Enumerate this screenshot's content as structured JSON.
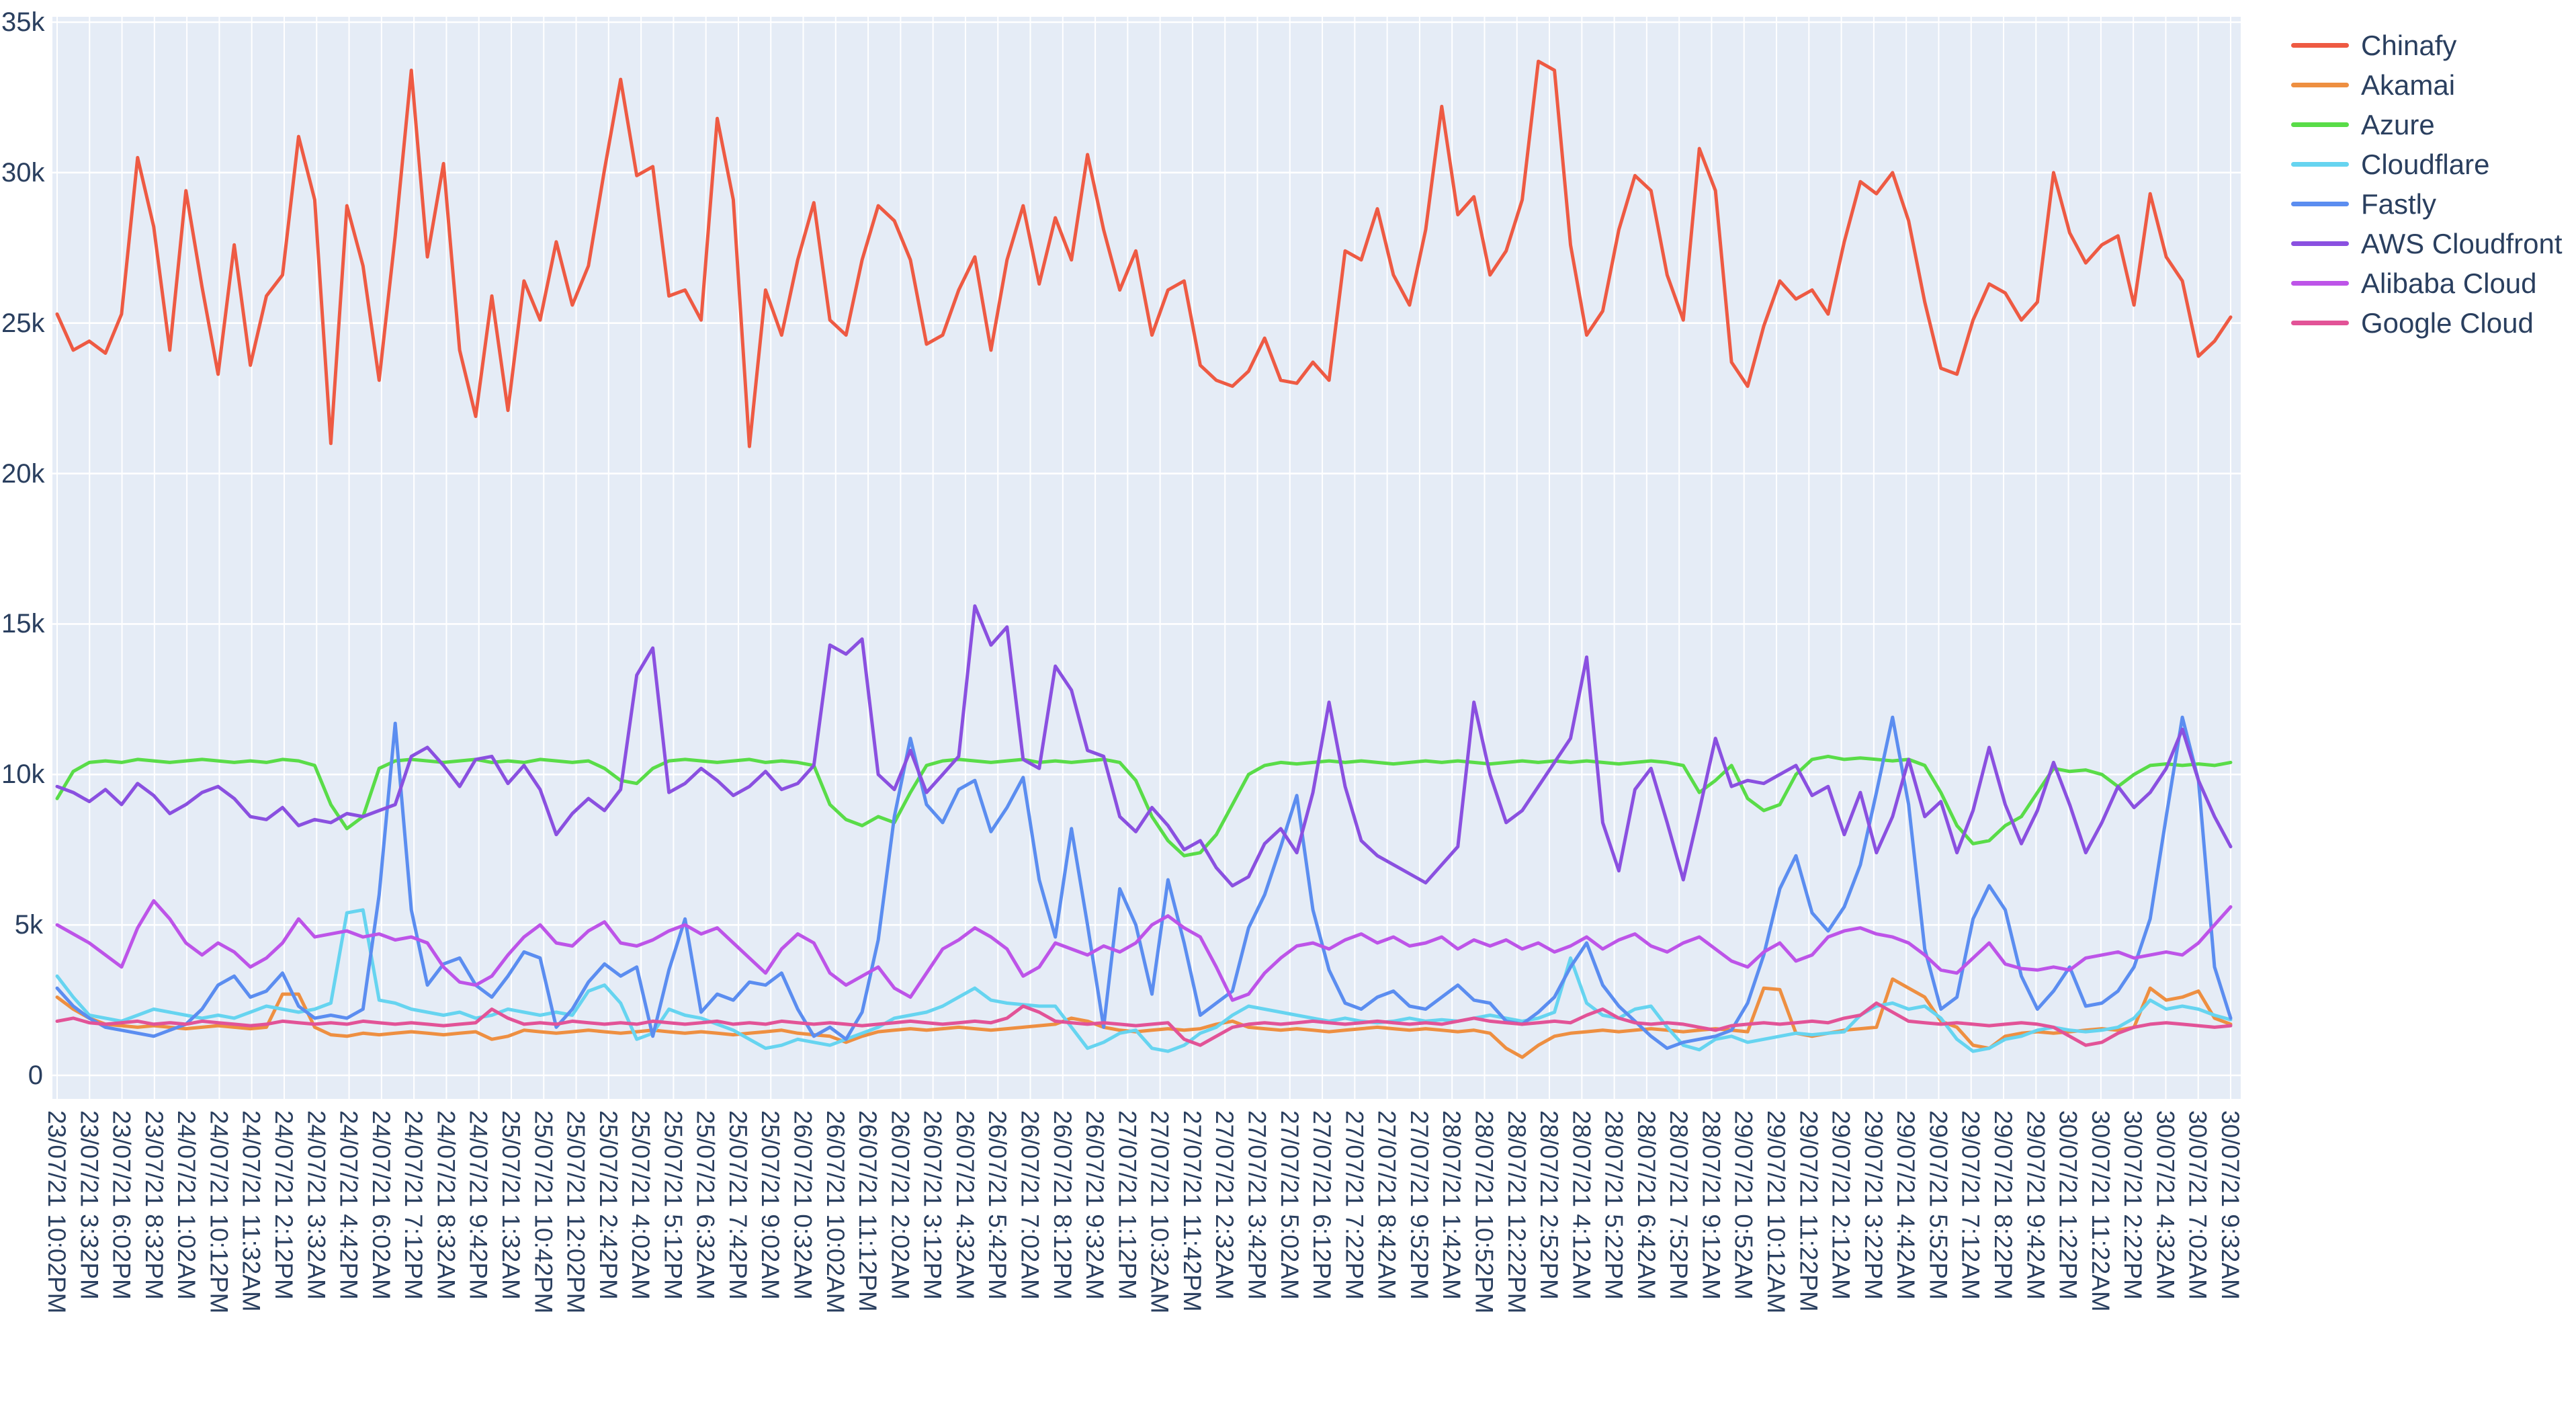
{
  "chart_data": {
    "type": "line",
    "title": "",
    "xlabel": "",
    "ylabel": "",
    "plot_background": "#e5ecf6",
    "grid_color": "#ffffff",
    "tick_color": "#2a3f5f",
    "legend_position": "right",
    "grid": true,
    "ylim": [
      0,
      35000
    ],
    "values_unit": "k",
    "ytick_labels": [
      "0",
      "5k",
      "10k",
      "15k",
      "20k",
      "25k",
      "30k",
      "35k"
    ],
    "xtick_labels": [
      "23/07/21 10:02PM",
      "23/07/21 3:32PM",
      "23/07/21 6:02PM",
      "23/07/21 8:32PM",
      "24/07/21 1:02AM",
      "24/07/21 10:12PM",
      "24/07/21 11:32AM",
      "24/07/21 2:12PM",
      "24/07/21 3:32AM",
      "24/07/21 4:42PM",
      "24/07/21 6:02AM",
      "24/07/21 7:12PM",
      "24/07/21 8:32AM",
      "24/07/21 9:42PM",
      "25/07/21 1:32AM",
      "25/07/21 10:42PM",
      "25/07/21 12:02PM",
      "25/07/21 2:42PM",
      "25/07/21 4:02AM",
      "25/07/21 5:12PM",
      "25/07/21 6:32AM",
      "25/07/21 7:42PM",
      "25/07/21 9:02AM",
      "26/07/21 0:32AM",
      "26/07/21 10:02AM",
      "26/07/21 11:12PM",
      "26/07/21 2:02AM",
      "26/07/21 3:12PM",
      "26/07/21 4:32AM",
      "26/07/21 5:42PM",
      "26/07/21 7:02AM",
      "26/07/21 8:12PM",
      "26/07/21 9:32AM",
      "27/07/21 1:12PM",
      "27/07/21 10:32AM",
      "27/07/21 11:42PM",
      "27/07/21 2:32AM",
      "27/07/21 3:42PM",
      "27/07/21 5:02AM",
      "27/07/21 6:12PM",
      "27/07/21 7:22PM",
      "27/07/21 8:42AM",
      "27/07/21 9:52PM",
      "28/07/21 1:42AM",
      "28/07/21 10:52PM",
      "28/07/21 12:22PM",
      "28/07/21 2:52PM",
      "28/07/21 4:12AM",
      "28/07/21 5:22PM",
      "28/07/21 6:42AM",
      "28/07/21 7:52PM",
      "28/07/21 9:12AM",
      "29/07/21 0:52AM",
      "29/07/21 10:12AM",
      "29/07/21 11:22PM",
      "29/07/21 2:12AM",
      "29/07/21 3:22PM",
      "29/07/21 4:42AM",
      "29/07/21 5:52PM",
      "29/07/21 7:12AM",
      "29/07/21 8:22PM",
      "29/07/21 9:42AM",
      "30/07/21 1:22PM",
      "30/07/21 11:22AM",
      "30/07/21 2:22PM",
      "30/07/21 4:32AM",
      "30/07/21 7:02AM",
      "30/07/21 9:32AM"
    ],
    "series": [
      {
        "name": "Chinafy",
        "color": "#ee5a43",
        "values": [
          25.3,
          24.1,
          24.4,
          24.0,
          25.3,
          30.5,
          28.2,
          24.1,
          29.4,
          26.2,
          23.3,
          27.6,
          23.6,
          25.9,
          26.6,
          31.2,
          29.1,
          21.0,
          28.9,
          26.9,
          23.1,
          27.9,
          33.4,
          27.2,
          30.3,
          24.1,
          21.9,
          25.9,
          22.1,
          26.4,
          25.1,
          27.7,
          25.6,
          26.9,
          30.1,
          33.1,
          29.9,
          30.2,
          25.9,
          26.1,
          25.1,
          31.8,
          29.1,
          20.9,
          26.1,
          24.6,
          27.1,
          29.0,
          25.1,
          24.6,
          27.1,
          28.9,
          28.4,
          27.1,
          24.3,
          24.6,
          26.1,
          27.2,
          24.1,
          27.1,
          28.9,
          26.3,
          28.5,
          27.1,
          30.6,
          28.1,
          26.1,
          27.4,
          24.6,
          26.1,
          26.4,
          23.6,
          23.1,
          22.9,
          23.4,
          24.5,
          23.1,
          23.0,
          23.7,
          23.1,
          27.4,
          27.1,
          28.8,
          26.6,
          25.6,
          28.1,
          32.2,
          28.6,
          29.2,
          26.6,
          27.4,
          29.1,
          33.7,
          33.4,
          27.6,
          24.6,
          25.4,
          28.1,
          29.9,
          29.4,
          26.6,
          25.1,
          30.8,
          29.4,
          23.7,
          22.9,
          24.9,
          26.4,
          25.8,
          26.1,
          25.3,
          27.7,
          29.7,
          29.3,
          30.0,
          28.4,
          25.7,
          23.5,
          23.3,
          25.1,
          26.3,
          26.0,
          25.1,
          25.7,
          30.0,
          28.0,
          27.0,
          27.6,
          27.9,
          25.6,
          29.3,
          27.2,
          26.4,
          23.9,
          24.4,
          25.2
        ]
      },
      {
        "name": "Akamai",
        "color": "#ee8f41",
        "values": [
          2.6,
          2.2,
          1.9,
          1.7,
          1.65,
          1.6,
          1.65,
          1.6,
          1.55,
          1.6,
          1.65,
          1.6,
          1.55,
          1.6,
          2.7,
          2.7,
          1.6,
          1.35,
          1.3,
          1.4,
          1.35,
          1.4,
          1.45,
          1.4,
          1.35,
          1.4,
          1.45,
          1.2,
          1.3,
          1.5,
          1.45,
          1.4,
          1.45,
          1.5,
          1.45,
          1.4,
          1.45,
          1.5,
          1.45,
          1.4,
          1.45,
          1.4,
          1.35,
          1.4,
          1.45,
          1.5,
          1.4,
          1.35,
          1.3,
          1.1,
          1.3,
          1.45,
          1.5,
          1.55,
          1.5,
          1.55,
          1.6,
          1.55,
          1.5,
          1.55,
          1.6,
          1.65,
          1.7,
          1.9,
          1.8,
          1.6,
          1.5,
          1.45,
          1.5,
          1.55,
          1.5,
          1.55,
          1.7,
          1.8,
          1.6,
          1.55,
          1.5,
          1.55,
          1.5,
          1.45,
          1.5,
          1.55,
          1.6,
          1.55,
          1.5,
          1.55,
          1.5,
          1.45,
          1.5,
          1.4,
          0.9,
          0.6,
          1.0,
          1.3,
          1.4,
          1.45,
          1.5,
          1.45,
          1.5,
          1.55,
          1.5,
          1.45,
          1.5,
          1.55,
          1.5,
          1.45,
          2.9,
          2.85,
          1.4,
          1.3,
          1.4,
          1.5,
          1.55,
          1.6,
          3.2,
          2.9,
          2.6,
          1.8,
          1.6,
          1.0,
          0.9,
          1.3,
          1.4,
          1.45,
          1.4,
          1.45,
          1.5,
          1.55,
          1.5,
          1.6,
          2.9,
          2.5,
          2.6,
          2.8,
          1.9,
          1.7
        ]
      },
      {
        "name": "Azure",
        "color": "#59dc48",
        "values": [
          9.2,
          10.1,
          10.4,
          10.45,
          10.4,
          10.5,
          10.45,
          10.4,
          10.45,
          10.5,
          10.45,
          10.4,
          10.45,
          10.4,
          10.5,
          10.45,
          10.3,
          9.0,
          8.2,
          8.6,
          10.2,
          10.45,
          10.5,
          10.45,
          10.4,
          10.45,
          10.5,
          10.4,
          10.45,
          10.4,
          10.5,
          10.45,
          10.4,
          10.45,
          10.2,
          9.8,
          9.7,
          10.2,
          10.45,
          10.5,
          10.45,
          10.4,
          10.45,
          10.5,
          10.4,
          10.45,
          10.4,
          10.3,
          9.0,
          8.5,
          8.3,
          8.6,
          8.4,
          9.4,
          10.3,
          10.45,
          10.5,
          10.45,
          10.4,
          10.45,
          10.5,
          10.4,
          10.45,
          10.4,
          10.45,
          10.5,
          10.4,
          9.8,
          8.6,
          7.8,
          7.3,
          7.4,
          8.0,
          9.0,
          10.0,
          10.3,
          10.4,
          10.35,
          10.4,
          10.45,
          10.4,
          10.45,
          10.4,
          10.35,
          10.4,
          10.45,
          10.4,
          10.45,
          10.4,
          10.35,
          10.4,
          10.45,
          10.4,
          10.45,
          10.4,
          10.45,
          10.4,
          10.35,
          10.4,
          10.45,
          10.4,
          10.3,
          9.4,
          9.8,
          10.3,
          9.2,
          8.8,
          9.0,
          10.0,
          10.5,
          10.6,
          10.5,
          10.55,
          10.5,
          10.45,
          10.5,
          10.3,
          9.4,
          8.3,
          7.7,
          7.8,
          8.3,
          8.6,
          9.4,
          10.2,
          10.1,
          10.15,
          10.0,
          9.6,
          10.0,
          10.3,
          10.35,
          10.3,
          10.35,
          10.3,
          10.4
        ]
      },
      {
        "name": "Cloudflare",
        "color": "#66d4f0",
        "values": [
          3.3,
          2.6,
          2.0,
          1.9,
          1.8,
          2.0,
          2.2,
          2.1,
          2.0,
          1.9,
          2.0,
          1.9,
          2.1,
          2.3,
          2.2,
          2.1,
          2.2,
          2.4,
          5.4,
          5.5,
          2.5,
          2.4,
          2.2,
          2.1,
          2.0,
          2.1,
          1.9,
          2.0,
          2.2,
          2.1,
          2.0,
          2.1,
          2.0,
          2.8,
          3.0,
          2.4,
          1.2,
          1.4,
          2.2,
          2.0,
          1.9,
          1.7,
          1.5,
          1.2,
          0.9,
          1.0,
          1.2,
          1.1,
          1.0,
          1.2,
          1.4,
          1.6,
          1.9,
          2.0,
          2.1,
          2.3,
          2.6,
          2.9,
          2.5,
          2.4,
          2.35,
          2.3,
          2.3,
          1.6,
          0.9,
          1.1,
          1.4,
          1.5,
          0.9,
          0.8,
          1.0,
          1.4,
          1.6,
          2.0,
          2.3,
          2.2,
          2.1,
          2.0,
          1.9,
          1.8,
          1.9,
          1.8,
          1.75,
          1.8,
          1.9,
          1.8,
          1.85,
          1.8,
          1.9,
          2.0,
          1.9,
          1.8,
          1.9,
          2.1,
          3.9,
          2.4,
          2.0,
          1.9,
          2.2,
          2.3,
          1.6,
          1.0,
          0.85,
          1.2,
          1.3,
          1.1,
          1.2,
          1.3,
          1.4,
          1.35,
          1.4,
          1.45,
          2.0,
          2.3,
          2.4,
          2.2,
          2.3,
          1.9,
          1.2,
          0.8,
          0.9,
          1.2,
          1.3,
          1.5,
          1.6,
          1.5,
          1.45,
          1.5,
          1.6,
          1.9,
          2.5,
          2.2,
          2.3,
          2.2,
          2.0,
          1.85
        ]
      },
      {
        "name": "Fastly",
        "color": "#5b8df0",
        "values": [
          2.9,
          2.3,
          1.9,
          1.6,
          1.5,
          1.4,
          1.3,
          1.5,
          1.7,
          2.2,
          3.0,
          3.3,
          2.6,
          2.8,
          3.4,
          2.3,
          1.9,
          2.0,
          1.9,
          2.2,
          6.0,
          11.7,
          5.5,
          3.0,
          3.7,
          3.9,
          3.0,
          2.6,
          3.3,
          4.1,
          3.9,
          1.6,
          2.2,
          3.1,
          3.7,
          3.3,
          3.6,
          1.3,
          3.5,
          5.2,
          2.1,
          2.7,
          2.5,
          3.1,
          3.0,
          3.4,
          2.2,
          1.3,
          1.6,
          1.2,
          2.1,
          4.5,
          8.6,
          11.2,
          9.0,
          8.4,
          9.5,
          9.8,
          8.1,
          8.9,
          9.9,
          6.5,
          4.6,
          8.2,
          5.0,
          1.6,
          6.2,
          5.0,
          2.7,
          6.5,
          4.4,
          2.0,
          2.4,
          2.8,
          4.9,
          6.0,
          7.6,
          9.3,
          5.5,
          3.5,
          2.4,
          2.2,
          2.6,
          2.8,
          2.3,
          2.2,
          2.6,
          3.0,
          2.5,
          2.4,
          1.8,
          1.7,
          2.1,
          2.6,
          3.6,
          4.4,
          3.0,
          2.3,
          1.8,
          1.3,
          0.9,
          1.1,
          1.2,
          1.3,
          1.5,
          2.4,
          4.0,
          6.2,
          7.3,
          5.4,
          4.8,
          5.6,
          7.0,
          9.4,
          11.9,
          9.0,
          4.2,
          2.2,
          2.6,
          5.2,
          6.3,
          5.5,
          3.3,
          2.2,
          2.8,
          3.6,
          2.3,
          2.4,
          2.8,
          3.6,
          5.2,
          8.6,
          11.9,
          9.8,
          3.6,
          1.9
        ]
      },
      {
        "name": "AWS Cloudfront",
        "color": "#8a50e0",
        "values": [
          9.6,
          9.4,
          9.1,
          9.5,
          9.0,
          9.7,
          9.3,
          8.7,
          9.0,
          9.4,
          9.6,
          9.2,
          8.6,
          8.5,
          8.9,
          8.3,
          8.5,
          8.4,
          8.7,
          8.6,
          8.8,
          9.0,
          10.6,
          10.9,
          10.3,
          9.6,
          10.5,
          10.6,
          9.7,
          10.3,
          9.5,
          8.0,
          8.7,
          9.2,
          8.8,
          9.5,
          13.3,
          14.2,
          9.4,
          9.7,
          10.2,
          9.8,
          9.3,
          9.6,
          10.1,
          9.5,
          9.7,
          10.3,
          14.3,
          14.0,
          14.5,
          10.0,
          9.5,
          10.8,
          9.4,
          10.0,
          10.6,
          15.6,
          14.3,
          14.9,
          10.5,
          10.2,
          13.6,
          12.8,
          10.8,
          10.6,
          8.6,
          8.1,
          8.9,
          8.3,
          7.5,
          7.8,
          6.9,
          6.3,
          6.6,
          7.7,
          8.2,
          7.4,
          9.4,
          12.4,
          9.6,
          7.8,
          7.3,
          7.0,
          6.7,
          6.4,
          7.0,
          7.6,
          12.4,
          10.0,
          8.4,
          8.8,
          9.6,
          10.4,
          11.2,
          13.9,
          8.4,
          6.8,
          9.5,
          10.2,
          8.4,
          6.5,
          8.8,
          11.2,
          9.6,
          9.8,
          9.7,
          10.0,
          10.3,
          9.3,
          9.6,
          8.0,
          9.4,
          7.4,
          8.6,
          10.5,
          8.6,
          9.1,
          7.4,
          8.8,
          10.9,
          9.0,
          7.7,
          8.8,
          10.4,
          9.0,
          7.4,
          8.4,
          9.6,
          8.9,
          9.4,
          10.2,
          11.5,
          9.8,
          8.6,
          7.6
        ]
      },
      {
        "name": "Alibaba Cloud",
        "color": "#bd54e8",
        "values": [
          5.0,
          4.7,
          4.4,
          4.0,
          3.6,
          4.9,
          5.8,
          5.2,
          4.4,
          4.0,
          4.4,
          4.1,
          3.6,
          3.9,
          4.4,
          5.2,
          4.6,
          4.7,
          4.8,
          4.6,
          4.7,
          4.5,
          4.6,
          4.4,
          3.6,
          3.1,
          3.0,
          3.3,
          4.0,
          4.6,
          5.0,
          4.4,
          4.3,
          4.8,
          5.1,
          4.4,
          4.3,
          4.5,
          4.8,
          5.0,
          4.7,
          4.9,
          4.4,
          3.9,
          3.4,
          4.2,
          4.7,
          4.4,
          3.4,
          3.0,
          3.3,
          3.6,
          2.9,
          2.6,
          3.4,
          4.2,
          4.5,
          4.9,
          4.6,
          4.2,
          3.3,
          3.6,
          4.4,
          4.2,
          4.0,
          4.3,
          4.1,
          4.4,
          5.0,
          5.3,
          4.9,
          4.6,
          3.6,
          2.5,
          2.7,
          3.4,
          3.9,
          4.3,
          4.4,
          4.2,
          4.5,
          4.7,
          4.4,
          4.6,
          4.3,
          4.4,
          4.6,
          4.2,
          4.5,
          4.3,
          4.5,
          4.2,
          4.4,
          4.1,
          4.3,
          4.6,
          4.2,
          4.5,
          4.7,
          4.3,
          4.1,
          4.4,
          4.6,
          4.2,
          3.8,
          3.6,
          4.1,
          4.4,
          3.8,
          4.0,
          4.6,
          4.8,
          4.9,
          4.7,
          4.6,
          4.4,
          4.0,
          3.5,
          3.4,
          3.9,
          4.4,
          3.7,
          3.55,
          3.5,
          3.6,
          3.5,
          3.9,
          4.0,
          4.1,
          3.9,
          4.0,
          4.1,
          4.0,
          4.4,
          5.0,
          5.6
        ]
      },
      {
        "name": "Google Cloud",
        "color": "#e25397",
        "values": [
          1.8,
          1.9,
          1.75,
          1.7,
          1.75,
          1.8,
          1.7,
          1.75,
          1.7,
          1.8,
          1.75,
          1.7,
          1.65,
          1.7,
          1.8,
          1.75,
          1.7,
          1.75,
          1.7,
          1.8,
          1.75,
          1.7,
          1.75,
          1.7,
          1.65,
          1.7,
          1.75,
          2.2,
          1.9,
          1.7,
          1.75,
          1.7,
          1.8,
          1.75,
          1.7,
          1.75,
          1.7,
          1.8,
          1.75,
          1.7,
          1.75,
          1.8,
          1.7,
          1.75,
          1.7,
          1.8,
          1.75,
          1.7,
          1.75,
          1.7,
          1.65,
          1.7,
          1.75,
          1.8,
          1.75,
          1.7,
          1.75,
          1.8,
          1.75,
          1.9,
          2.3,
          2.1,
          1.8,
          1.75,
          1.7,
          1.75,
          1.7,
          1.65,
          1.7,
          1.75,
          1.2,
          1.0,
          1.3,
          1.6,
          1.7,
          1.75,
          1.7,
          1.75,
          1.8,
          1.75,
          1.7,
          1.75,
          1.8,
          1.75,
          1.7,
          1.75,
          1.7,
          1.8,
          1.9,
          1.8,
          1.75,
          1.7,
          1.75,
          1.8,
          1.75,
          2.0,
          2.2,
          1.9,
          1.75,
          1.7,
          1.75,
          1.7,
          1.6,
          1.5,
          1.65,
          1.7,
          1.75,
          1.7,
          1.75,
          1.8,
          1.75,
          1.9,
          2.0,
          2.4,
          2.1,
          1.8,
          1.75,
          1.7,
          1.75,
          1.7,
          1.65,
          1.7,
          1.75,
          1.7,
          1.6,
          1.3,
          1.0,
          1.1,
          1.4,
          1.6,
          1.7,
          1.75,
          1.7,
          1.65,
          1.6,
          1.65
        ]
      }
    ]
  }
}
